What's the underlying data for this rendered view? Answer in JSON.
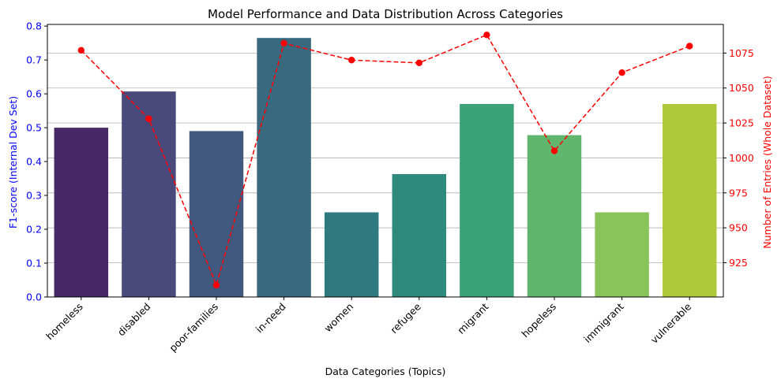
{
  "chart_data": {
    "type": "bar",
    "title": "Model Performance and Data Distribution Across Categories",
    "xlabel": "Data Categories (Topics)",
    "ylabel": "F1-score (Internal Dev Set)",
    "y2label": "Number of Entries (Whole Dataset)",
    "categories": [
      "homeless",
      "disabled",
      "poor-families",
      "in-need",
      "women",
      "refugee",
      "migrant",
      "hopeless",
      "immigrant",
      "vulnerable"
    ],
    "series": [
      {
        "type": "bar",
        "axis": "left",
        "values": [
          0.5,
          0.607,
          0.49,
          0.765,
          0.25,
          0.363,
          0.57,
          0.478,
          0.25,
          0.57
        ],
        "colors": [
          "#482867",
          "#49497c",
          "#41597f",
          "#39697f",
          "#2e7a7e",
          "#2d8a7c",
          "#3ba277",
          "#60b66d",
          "#89c35a",
          "#b0c93a"
        ]
      },
      {
        "type": "line",
        "axis": "right",
        "style": "dashed",
        "marker": "circle",
        "color": "#ff0000",
        "values": [
          1077,
          1028,
          909,
          1082,
          1070,
          1068,
          1088,
          1005,
          1061,
          1080
        ]
      }
    ],
    "ylim": [
      0,
      0.805
    ],
    "y2lim": [
      900.5,
      1095.5
    ],
    "yticks": [
      "0.0",
      "0.1",
      "0.2",
      "0.3",
      "0.4",
      "0.5",
      "0.6",
      "0.7",
      "0.8"
    ],
    "y2ticks": [
      "925",
      "950",
      "975",
      "1000",
      "1025",
      "1050",
      "1075"
    ],
    "grid": "horizontal",
    "left_axis_color": "#0000ff",
    "right_axis_color": "#ff0000"
  }
}
